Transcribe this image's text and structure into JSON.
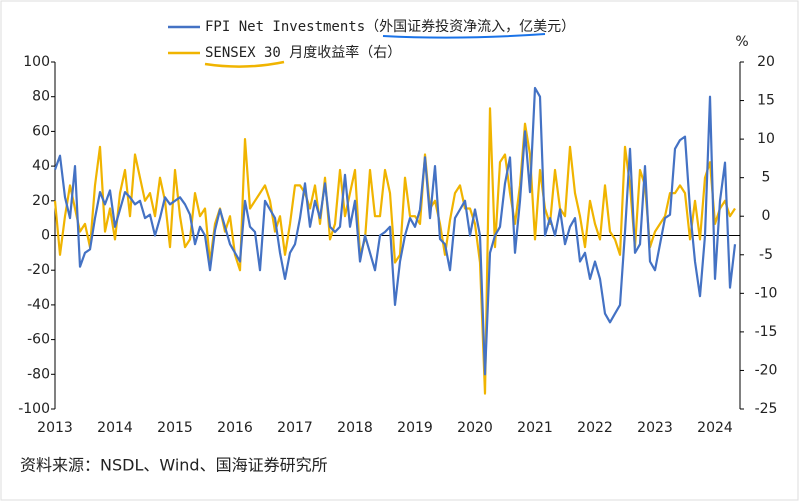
{
  "chart_data": {
    "type": "line",
    "categories": [
      "2013",
      null,
      null,
      null,
      null,
      null,
      null,
      null,
      null,
      null,
      null,
      null,
      "2014",
      null,
      null,
      null,
      null,
      null,
      null,
      null,
      null,
      null,
      null,
      null,
      "2015",
      null,
      null,
      null,
      null,
      null,
      null,
      null,
      null,
      null,
      null,
      null,
      "2016",
      null,
      null,
      null,
      null,
      null,
      null,
      null,
      null,
      null,
      null,
      null,
      "2017",
      null,
      null,
      null,
      null,
      null,
      null,
      null,
      null,
      null,
      null,
      null,
      "2018",
      null,
      null,
      null,
      null,
      null,
      null,
      null,
      null,
      null,
      null,
      null,
      "2019",
      null,
      null,
      null,
      null,
      null,
      null,
      null,
      null,
      null,
      null,
      null,
      "2020",
      null,
      null,
      null,
      null,
      null,
      null,
      null,
      null,
      null,
      null,
      null,
      "2021",
      null,
      null,
      null,
      null,
      null,
      null,
      null,
      null,
      null,
      null,
      null,
      "2022",
      null,
      null,
      null,
      null,
      null,
      null,
      null,
      null,
      null,
      null,
      null,
      "2023",
      null,
      null,
      null,
      null,
      null,
      null,
      null,
      null,
      null,
      null,
      null,
      "2024",
      null,
      null,
      null,
      null
    ],
    "series": [
      {
        "name": "FPI Net Investments（外国证券投资净流入，亿美元）",
        "color": "#4472c4",
        "values": [
          38,
          46,
          22,
          10,
          40,
          -18,
          -10,
          -8,
          10,
          25,
          18,
          26,
          5,
          15,
          25,
          22,
          18,
          20,
          10,
          12,
          0,
          10,
          22,
          18,
          20,
          22,
          18,
          12,
          -5,
          5,
          0,
          -20,
          3,
          15,
          5,
          -5,
          -10,
          -15,
          20,
          5,
          2,
          -20,
          20,
          15,
          10,
          -10,
          -25,
          -10,
          -5,
          10,
          30,
          5,
          20,
          10,
          30,
          5,
          2,
          5,
          35,
          5,
          20,
          -15,
          0,
          -10,
          -20,
          0,
          2,
          5,
          -40,
          -15,
          0,
          10,
          5,
          15,
          45,
          10,
          40,
          -2,
          -5,
          -20,
          10,
          15,
          20,
          0,
          15,
          0,
          -80,
          -10,
          0,
          5,
          30,
          45,
          -10,
          20,
          60,
          25,
          85,
          80,
          0,
          10,
          0,
          15,
          -5,
          5,
          10,
          -15,
          -10,
          -25,
          -15,
          -25,
          -45,
          -50,
          -45,
          -40,
          2,
          50,
          -10,
          -5,
          40,
          -15,
          -20,
          -5,
          10,
          12,
          50,
          55,
          57,
          15,
          -15,
          -35,
          0,
          80,
          -25,
          20,
          42,
          -30,
          -5
        ]
      },
      {
        "name": "SENSEX 30 月度收益率（右）",
        "color": "#f0b400",
        "axis": "y2",
        "values": [
          2,
          -5,
          0,
          4,
          1,
          -2,
          -1,
          -4,
          4,
          9,
          -2,
          1,
          -3,
          3,
          6,
          0,
          8,
          5,
          2,
          3,
          0,
          5,
          2,
          -4,
          6,
          0,
          -4,
          -3,
          3,
          0,
          1,
          -6,
          -1,
          1,
          -2,
          0,
          -5,
          -7,
          10,
          1,
          2,
          3,
          4,
          2,
          -2,
          0,
          -5,
          -1,
          4,
          4,
          3,
          1,
          4,
          -1,
          5,
          -3,
          -1,
          6,
          0,
          3,
          6,
          -5,
          -3,
          6,
          0,
          0,
          6,
          3,
          -6,
          -5,
          5,
          0,
          0,
          -1,
          8,
          1,
          2,
          -1,
          -5,
          -0.5,
          3,
          4,
          1,
          1,
          -1,
          -6,
          -23,
          14,
          -4,
          7,
          8,
          3,
          -1,
          4,
          12,
          8,
          -3,
          6,
          1,
          -1,
          6,
          1,
          0,
          9,
          3,
          0,
          -4,
          2,
          -1,
          -3,
          4,
          -2,
          -3,
          -5,
          9,
          4,
          -4,
          6,
          4,
          -4,
          -2,
          -1,
          0,
          3,
          3,
          4,
          3,
          -3,
          2,
          -3,
          5,
          7,
          -1,
          1,
          2,
          0,
          1
        ]
      }
    ],
    "ylim": [
      -100,
      100
    ],
    "yticks": [
      -100,
      -80,
      -60,
      -40,
      -20,
      0,
      20,
      40,
      60,
      80,
      100
    ],
    "y2lim": [
      -25,
      20
    ],
    "y2ticks": [
      -25,
      -20,
      -15,
      -10,
      -5,
      0,
      5,
      10,
      15,
      20
    ],
    "y2label": "%",
    "source": "资料来源：NSDL、Wind、国海证券研究所"
  }
}
